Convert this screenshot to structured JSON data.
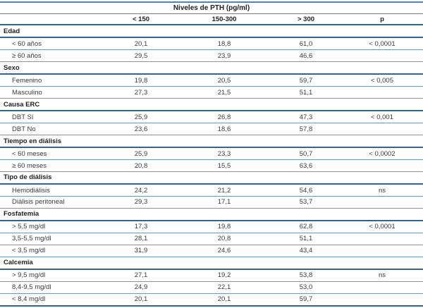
{
  "colors": {
    "line_accent": "#4f81bd",
    "line_strong": "#35628f",
    "line_thin": "#7396c4",
    "text_regular": "#3a3a3a",
    "text_bold": "#1f1f1f",
    "background": "#ffffff"
  },
  "table": {
    "title": "Niveles de PTH (pg/ml)",
    "columns": [
      "< 150",
      "150-300",
      "> 300",
      "p"
    ],
    "groups": [
      {
        "label": "Edad",
        "rows": [
          {
            "label": "< 60 años",
            "values": [
              "20,1",
              "18,8",
              "61,0"
            ],
            "p": "< 0,0001"
          },
          {
            "label": "≥ 60 años",
            "values": [
              "29,5",
              "23,9",
              "46,6"
            ],
            "p": ""
          }
        ]
      },
      {
        "label": "Sexo",
        "rows": [
          {
            "label": "Femenino",
            "values": [
              "19,8",
              "20,5",
              "59,7"
            ],
            "p": "< 0,005"
          },
          {
            "label": "Masculino",
            "values": [
              "27,3",
              "21,5",
              "51,1"
            ],
            "p": ""
          }
        ]
      },
      {
        "label": "Causa ERC",
        "rows": [
          {
            "label": "DBT Sí",
            "values": [
              "25,9",
              "26,8",
              "47,3"
            ],
            "p": "< 0,001"
          },
          {
            "label": "DBT No",
            "values": [
              "23,6",
              "18,6",
              "57,8"
            ],
            "p": ""
          }
        ]
      },
      {
        "label": "Tiempo en diálisis",
        "rows": [
          {
            "label": "< 60 meses",
            "values": [
              "25,9",
              "23,3",
              "50,7"
            ],
            "p": "< 0,0002"
          },
          {
            "label": "≥ 60 meses",
            "values": [
              "20,8",
              "15,5",
              "63,6"
            ],
            "p": ""
          }
        ]
      },
      {
        "label": "Tipo de diálisis",
        "rows": [
          {
            "label": "Hemodiálisis",
            "values": [
              "24,2",
              "21,2",
              "54,6"
            ],
            "p": "ns"
          },
          {
            "label": "Diálisis peritoneal",
            "values": [
              "29,3",
              "17,1",
              "53,7"
            ],
            "p": ""
          }
        ]
      },
      {
        "label": "Fosfatemia",
        "rows": [
          {
            "label": "> 5,5 mg/dl",
            "values": [
              "17,3",
              "19,8",
              "62,8"
            ],
            "p": "< 0,0001"
          },
          {
            "label": "3,5-5,5 mg/dl",
            "values": [
              "28,1",
              "20,8",
              "51,1"
            ],
            "p": ""
          },
          {
            "label": "< 3,5 mg/dl",
            "values": [
              "31,9",
              "24,6",
              "43,4"
            ],
            "p": ""
          }
        ]
      },
      {
        "label": "Calcemia",
        "rows": [
          {
            "label": "> 9,5 mg/dl",
            "values": [
              "27,1",
              "19,2",
              "53,8"
            ],
            "p": "ns"
          },
          {
            "label": "8,4-9,5 mg/dl",
            "values": [
              "24,9",
              "22,1",
              "53,0"
            ],
            "p": ""
          },
          {
            "label": "< 8,4 mg/dl",
            "values": [
              "20,1",
              "20,1",
              "59,7"
            ],
            "p": ""
          }
        ]
      }
    ]
  }
}
